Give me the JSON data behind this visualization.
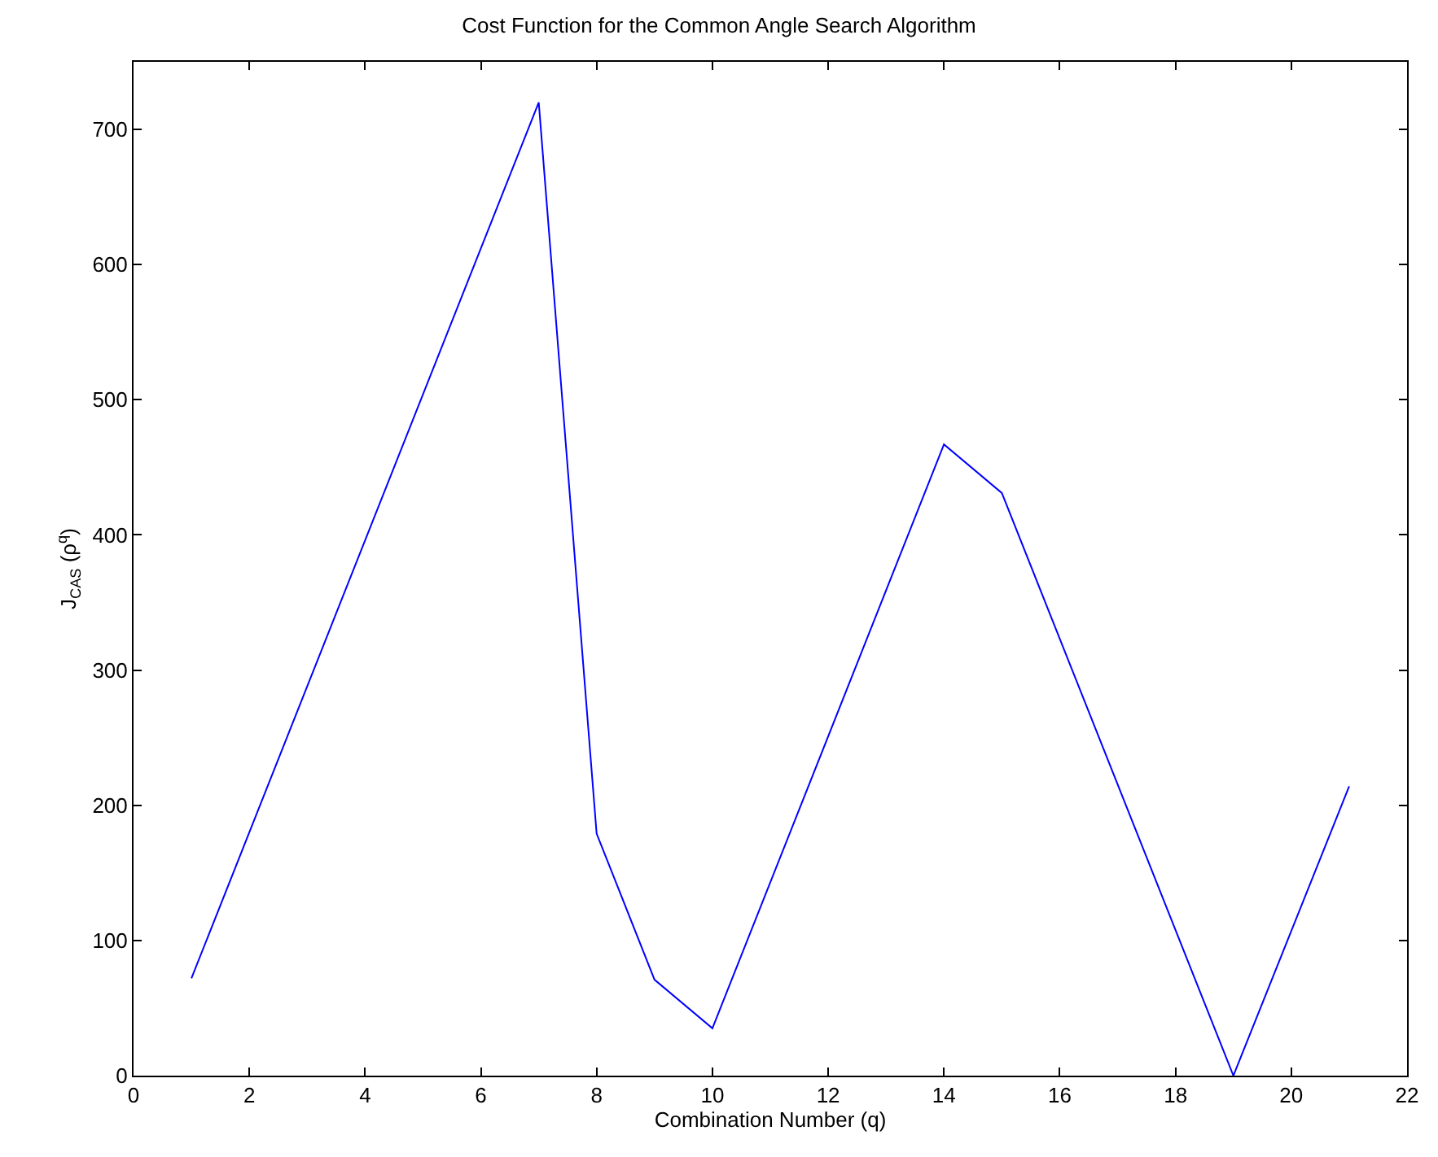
{
  "chart_data": {
    "type": "line",
    "title": "Cost Function for the Common Angle Search Algorithm",
    "xlabel": "Combination Number (q)",
    "ylabel": "J$_{CAS}$ (ρ$^{q}$)",
    "x": [
      1,
      7,
      8,
      9,
      10,
      14,
      15,
      19,
      21
    ],
    "series": [
      {
        "color": "#0000ff",
        "values": [
          72,
          720,
          179,
          71,
          35,
          467,
          431,
          0,
          214
        ]
      }
    ],
    "xlim": [
      0,
      22
    ],
    "xticks": [
      0,
      2,
      4,
      6,
      8,
      10,
      12,
      14,
      16,
      18,
      20,
      22
    ],
    "ylim": [
      0,
      750
    ],
    "yticks": [
      0,
      100,
      200,
      300,
      400,
      500,
      600,
      700
    ],
    "marker": "none",
    "line_style": "solid"
  }
}
